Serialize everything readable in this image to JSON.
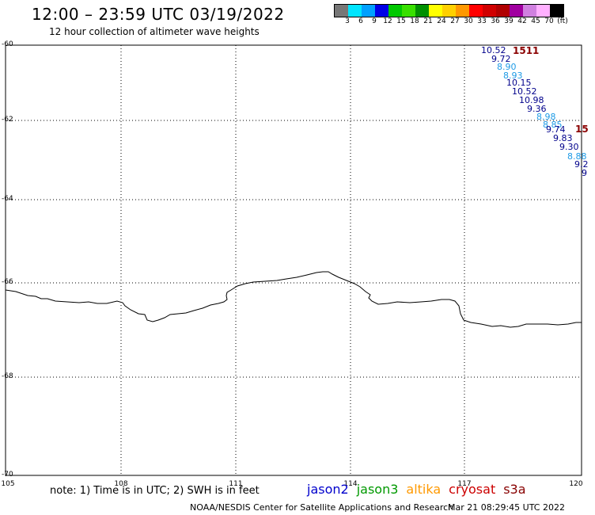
{
  "header": {
    "title": "12:00 – 23:59 UTC 03/19/2022",
    "subtitle": "12 hour collection of altimeter wave heights"
  },
  "colorbar": {
    "colors": [
      "#777777",
      "#00e5ff",
      "#00a0ff",
      "#0000e6",
      "#00c800",
      "#38e000",
      "#009000",
      "#ffff00",
      "#ffd000",
      "#ff9800",
      "#ff0000",
      "#d00000",
      "#b00000",
      "#a000a0",
      "#d080e0",
      "#ffb0ff",
      "#000000"
    ],
    "labels": [
      "3",
      "6",
      "9",
      "12",
      "15",
      "18",
      "21",
      "24",
      "27",
      "30",
      "33",
      "36",
      "39",
      "42",
      "45",
      "70",
      "(ft)"
    ]
  },
  "map": {
    "lat_labels": [
      "-60",
      "-62",
      "-64",
      "-66",
      "-68",
      "-70"
    ],
    "lon_labels": [
      "105",
      "108",
      "111",
      "114",
      "117",
      "120"
    ]
  },
  "track": {
    "id_labels": [
      "1511",
      "15"
    ],
    "swh_values": [
      "10.52",
      "9.72",
      "8.90",
      "8.93",
      "10.15",
      "10.52",
      "10.98",
      "9.36",
      "8.98",
      "8.85",
      "9.74",
      "9.83",
      "9.30",
      "8.88",
      "9.2",
      "9"
    ],
    "swh_colors": [
      "#00008b",
      "#00008b",
      "#1e9be6",
      "#1e9be6",
      "#00008b",
      "#00008b",
      "#00008b",
      "#00008b",
      "#1e9be6",
      "#1e9be6",
      "#00008b",
      "#00008b",
      "#00008b",
      "#1e9be6",
      "#00008b",
      "#00008b"
    ]
  },
  "footer": {
    "note": "note: 1) Time is in UTC; 2) SWH is in feet",
    "legend": [
      {
        "name": "jason2",
        "color": "#0000cc"
      },
      {
        "name": "jason3",
        "color": "#009900"
      },
      {
        "name": "altika",
        "color": "#ff9900"
      },
      {
        "name": "cryosat",
        "color": "#cc0000"
      },
      {
        "name": "s3a",
        "color": "#880000"
      }
    ],
    "credit": "NOAA/NESDIS Center for Satellite Applications and Research",
    "timestamp": "Mar 21 08:29:45 UTC 2022"
  }
}
